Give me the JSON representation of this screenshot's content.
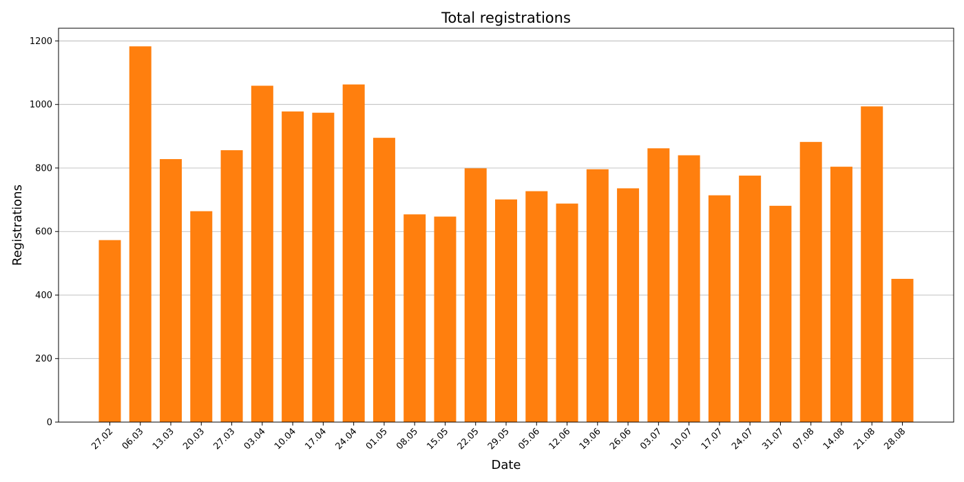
{
  "chart_data": {
    "type": "bar",
    "title": "Total registrations",
    "xlabel": "Date",
    "ylabel": "Registrations",
    "ylim": [
      0,
      1240
    ],
    "yticks": [
      0,
      200,
      400,
      600,
      800,
      1000,
      1200
    ],
    "grid": "horizontal",
    "bar_color": "#ff7f0e",
    "categories": [
      "27.02",
      "06.03",
      "13.03",
      "20.03",
      "27.03",
      "03.04",
      "10.04",
      "17.04",
      "24.04",
      "01.05",
      "08.05",
      "15.05",
      "22.05",
      "29.05",
      "05.06",
      "12.06",
      "19.06",
      "26.06",
      "03.07",
      "10.07",
      "17.07",
      "24.07",
      "31.07",
      "07.08",
      "14.08",
      "21.08",
      "28.08"
    ],
    "values": [
      573,
      1183,
      828,
      664,
      856,
      1059,
      978,
      974,
      1063,
      895,
      654,
      647,
      799,
      701,
      727,
      688,
      796,
      736,
      862,
      840,
      714,
      776,
      681,
      882,
      804,
      994,
      451
    ]
  }
}
